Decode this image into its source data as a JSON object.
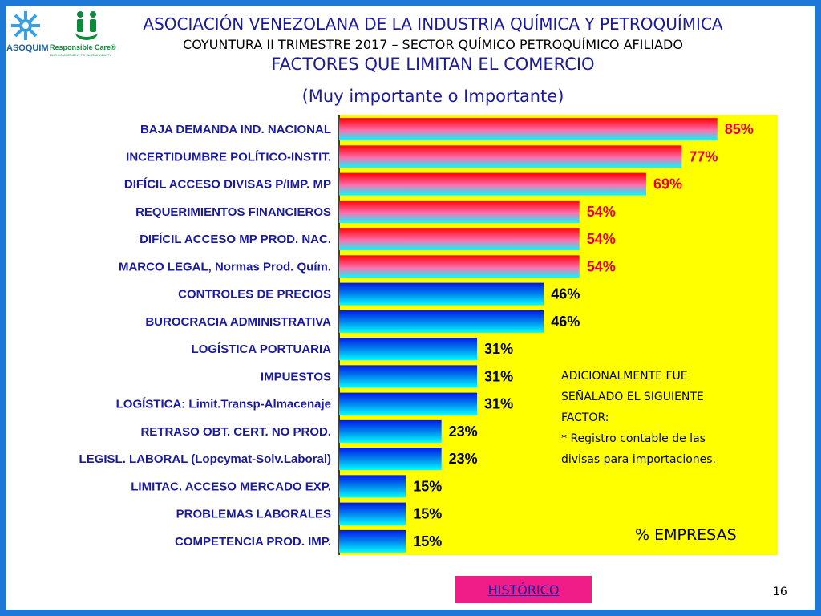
{
  "header": {
    "title": "ASOCIACIÓN VENEZOLANA DE LA INDUSTRIA QUÍMICA Y PETROQUÍMICA",
    "subtitle": "COYUNTURA II TRIMESTRE 2017 – SECTOR QUÍMICO PETROQUÍMICO AFILIADO",
    "section": "FACTORES QUE LIMITAN EL COMERCIO",
    "qualifier": "(Muy importante o Importante)"
  },
  "logos": {
    "asoquim": "ASOQUIM",
    "responsible_care": "Responsible Care®",
    "responsible_care_tagline": "OUR COMMITMENT TO SUSTAINABILITY"
  },
  "note": {
    "lines": [
      "ADICIONALMENTE  FUE",
      "SEÑALADO EL SIGUIENTE",
      "FACTOR:",
      "* Registro contable de las",
      "divisas para importaciones."
    ]
  },
  "units_label": "% EMPRESAS",
  "nav": {
    "historico_label": "HISTÓRICO"
  },
  "page_number": "16",
  "colors": {
    "frame": "#1e78d8",
    "plot_bg": "#ffff00",
    "title_blue": "#1a1aa0",
    "value_red": "#e8001c",
    "button_pink": "#f01c88"
  },
  "chart_data": {
    "type": "bar",
    "orientation": "horizontal",
    "categories": [
      "BAJA DEMANDA IND. NACIONAL",
      "INCERTIDUMBRE POLÍTICO-INSTIT.",
      "DIFÍCIL ACCESO DIVISAS P/IMP. MP",
      "REQUERIMIENTOS FINANCIEROS",
      "DIFÍCIL ACCESO MP PROD. NAC.",
      "MARCO LEGAL, Normas Prod. Quím.",
      "CONTROLES DE PRECIOS",
      "BUROCRACIA ADMINISTRATIVA",
      "LOGÍSTICA PORTUARIA",
      "IMPUESTOS",
      "LOGÍSTICA: Limit.Transp-Almacenaje",
      "RETRASO OBT. CERT. NO PROD.",
      "LEGISL. LABORAL (Lopcymat-Solv.Laboral)",
      "LIMITAC. ACCESO MERCADO EXP.",
      "PROBLEMAS LABORALES",
      "COMPETENCIA PROD. IMP."
    ],
    "values": [
      85,
      77,
      69,
      54,
      54,
      54,
      46,
      46,
      31,
      31,
      31,
      23,
      23,
      15,
      15,
      15
    ],
    "value_labels": [
      "85%",
      "77%",
      "69%",
      "54%",
      "54%",
      "54%",
      "46%",
      "46%",
      "31%",
      "31%",
      "31%",
      "23%",
      "23%",
      "15%",
      "15%",
      "15%"
    ],
    "highlighted": [
      true,
      true,
      true,
      true,
      true,
      true,
      false,
      false,
      false,
      false,
      false,
      false,
      false,
      false,
      false,
      false
    ],
    "xlim": [
      0,
      100
    ],
    "grid": false,
    "legend": "none"
  }
}
